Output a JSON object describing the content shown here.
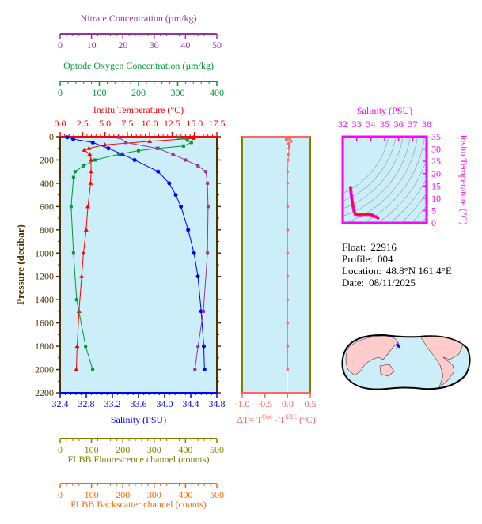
{
  "colors": {
    "temperature": "#ff0000",
    "salinity": "#0000ff",
    "oxygen": "#009933",
    "nitrate": "#993399",
    "deltaT": "#ff6666",
    "fluorescence": "#808000",
    "backscatter": "#ff6600",
    "ts": "#ff00ff",
    "plot_bg": "#cceef8",
    "frame": "#4d3300"
  },
  "chart_data": [
    {
      "type": "line",
      "name": "profile",
      "ylabel": "Pressure (decibar)",
      "ylim": [
        2200,
        0
      ],
      "yticks": [
        0,
        200,
        400,
        600,
        800,
        1000,
        1200,
        1400,
        1600,
        1800,
        2000,
        2200
      ],
      "axes": {
        "temperature": {
          "label": "Insitu Temperature (°C)",
          "range": [
            0,
            17.5
          ],
          "ticks": [
            "0.0",
            "2.5",
            "5.0",
            "7.5",
            "10.0",
            "12.5",
            "15.0",
            "17.5"
          ]
        },
        "salinity": {
          "label": "Salinity (PSU)",
          "range": [
            32.4,
            34.8
          ],
          "ticks": [
            "32.4",
            "32.8",
            "33.2",
            "33.6",
            "34.0",
            "34.4",
            "34.8"
          ]
        },
        "oxygen": {
          "label": "Optode Oxygen Concentration (µm/kg)",
          "range": [
            0,
            400
          ],
          "ticks": [
            "0",
            "100",
            "200",
            "300",
            "400"
          ]
        },
        "nitrate": {
          "label": "Nitrate Concentration (µm/kg)",
          "range": [
            0,
            50
          ],
          "ticks": [
            "0",
            "10",
            "20",
            "30",
            "40",
            "50"
          ]
        },
        "fluorescence": {
          "label": "FLBB Fluorescence channel (counts)",
          "range": [
            0,
            500
          ],
          "ticks": [
            "0",
            "100",
            "200",
            "300",
            "400",
            "500"
          ]
        },
        "backscatter": {
          "label": "FLBB Backscatter channel (counts)",
          "range": [
            0,
            500
          ],
          "ticks": [
            "0",
            "100",
            "200",
            "300",
            "400",
            "500"
          ]
        }
      },
      "series": [
        {
          "name": "temperature",
          "pressure": [
            5,
            14,
            40,
            70,
            100,
            115,
            150,
            200,
            300,
            400,
            600,
            800,
            1000,
            1200,
            1500,
            1800,
            2000
          ],
          "values": [
            14.9,
            14.9,
            10,
            5,
            3.2,
            2.7,
            3.3,
            3.45,
            3.45,
            3.4,
            3.1,
            2.9,
            2.6,
            2.4,
            2.1,
            1.9,
            1.8
          ]
        },
        {
          "name": "salinity",
          "pressure": [
            5,
            20,
            50,
            100,
            150,
            200,
            300,
            400,
            500,
            600,
            800,
            1000,
            1200,
            1500,
            1800,
            2000
          ],
          "values": [
            32.51,
            32.6,
            32.9,
            33.14,
            33.35,
            33.54,
            33.9,
            34.07,
            34.17,
            34.25,
            34.36,
            34.45,
            34.51,
            34.56,
            34.6,
            34.61
          ]
        },
        {
          "name": "oxygen",
          "pressure": [
            5,
            30,
            50,
            80,
            100,
            120,
            150,
            200,
            250,
            300,
            350,
            600,
            1000,
            1400,
            1800,
            2000
          ],
          "values": [
            303,
            325,
            335,
            315,
            250,
            200,
            150,
            89,
            60,
            38,
            34,
            28,
            34,
            42,
            65,
            83
          ]
        },
        {
          "name": "nitrate",
          "pressure": [
            5,
            50,
            100,
            150,
            200,
            250,
            300,
            400,
            600,
            1000,
            1500,
            1800,
            2000
          ],
          "values": [
            18.7,
            21,
            31,
            36,
            40,
            44,
            46.5,
            47,
            47.2,
            47,
            45.7,
            44,
            43
          ]
        }
      ]
    },
    {
      "type": "line",
      "name": "deltaT",
      "xlabel": "ΔT= T",
      "xlabel_sup1": "Opt",
      "xlabel_mid": " - T",
      "xlabel_sup2": "SBE",
      "xlabel_end": " (°C)",
      "xlim": [
        -1.0,
        0.5
      ],
      "xticks": [
        "-1.0",
        "-0.5",
        "0.0",
        "0.5"
      ],
      "pressure": [
        5,
        15,
        25,
        40,
        60,
        80,
        100,
        150,
        200,
        300,
        400,
        600,
        800,
        1000,
        1200,
        1400,
        1600,
        1800,
        2000
      ],
      "values": [
        0.0,
        0.05,
        -0.03,
        0.08,
        0.02,
        0.04,
        0.03,
        0.02,
        0.01,
        0.0,
        0.0,
        0.0,
        0.0,
        0.0,
        0.0,
        0.0,
        0.0,
        0.0,
        0.0
      ]
    },
    {
      "type": "scatter",
      "name": "ts-diagram",
      "xlabel": "Salinity (PSU)",
      "ylabel": "Insitu Temperature (°C)",
      "xlim": [
        32,
        38
      ],
      "ylim": [
        0,
        35
      ],
      "xticks": [
        "32",
        "33",
        "34",
        "35",
        "36",
        "37",
        "38"
      ],
      "yticks": [
        "0",
        "5",
        "10",
        "15",
        "20",
        "25",
        "30",
        "35"
      ],
      "salinity": [
        32.55,
        32.6,
        32.7,
        32.8,
        32.9,
        33.2,
        33.6,
        34.0,
        34.3,
        34.5,
        34.61
      ],
      "temperature": [
        14.9,
        12,
        8,
        5,
        3.5,
        3.3,
        3.45,
        3.4,
        2.6,
        2.1,
        1.8
      ]
    }
  ],
  "info": {
    "float_label": "Float:",
    "float": "22916",
    "profile_label": "Profile:",
    "profile": "004",
    "location_label": "Location:",
    "location": "48.8°N  161.4°E",
    "date_label": "Date:",
    "date": "08/11/2025"
  },
  "map": {
    "marker": "star-icon",
    "ocean": "#cceef8",
    "land": "#ffcccc"
  }
}
